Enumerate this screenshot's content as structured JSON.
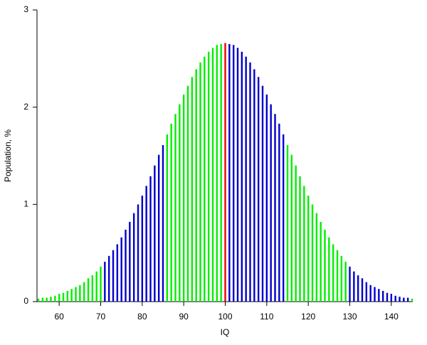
{
  "chart_data": {
    "type": "stem",
    "x_label": "IQ",
    "y_label": "Population, %",
    "x": [
      55,
      56,
      57,
      58,
      59,
      60,
      61,
      62,
      63,
      64,
      65,
      66,
      67,
      68,
      69,
      70,
      71,
      72,
      73,
      74,
      75,
      76,
      77,
      78,
      79,
      80,
      81,
      82,
      83,
      84,
      85,
      86,
      87,
      88,
      89,
      90,
      91,
      92,
      93,
      94,
      95,
      96,
      97,
      98,
      99,
      100,
      101,
      102,
      103,
      104,
      105,
      106,
      107,
      108,
      109,
      110,
      111,
      112,
      113,
      114,
      115,
      116,
      117,
      118,
      119,
      120,
      121,
      122,
      123,
      124,
      125,
      126,
      127,
      128,
      129,
      130,
      131,
      132,
      133,
      134,
      135,
      136,
      137,
      138,
      139,
      140,
      141,
      142,
      143,
      144,
      145
    ],
    "values": [
      0.03,
      0.04,
      0.04,
      0.05,
      0.06,
      0.08,
      0.09,
      0.11,
      0.13,
      0.15,
      0.17,
      0.2,
      0.24,
      0.27,
      0.31,
      0.36,
      0.41,
      0.47,
      0.53,
      0.59,
      0.66,
      0.74,
      0.82,
      0.91,
      1.0,
      1.09,
      1.19,
      1.29,
      1.4,
      1.51,
      1.61,
      1.72,
      1.83,
      1.93,
      2.03,
      2.13,
      2.22,
      2.31,
      2.39,
      2.46,
      2.52,
      2.57,
      2.61,
      2.64,
      2.65,
      2.66,
      2.65,
      2.64,
      2.61,
      2.57,
      2.52,
      2.46,
      2.39,
      2.31,
      2.22,
      2.13,
      2.03,
      1.93,
      1.83,
      1.72,
      1.61,
      1.51,
      1.4,
      1.29,
      1.19,
      1.09,
      1.0,
      0.91,
      0.82,
      0.74,
      0.66,
      0.59,
      0.53,
      0.47,
      0.41,
      0.36,
      0.31,
      0.27,
      0.24,
      0.2,
      0.17,
      0.15,
      0.13,
      0.11,
      0.09,
      0.08,
      0.06,
      0.05,
      0.04,
      0.04,
      0.03
    ],
    "colors": [
      "#00ee00",
      "#00ee00",
      "#00ee00",
      "#00ee00",
      "#00ee00",
      "#00ee00",
      "#00ee00",
      "#00ee00",
      "#00ee00",
      "#00ee00",
      "#00ee00",
      "#00ee00",
      "#00ee00",
      "#00ee00",
      "#00ee00",
      "#00ee00",
      "#0000cc",
      "#0000cc",
      "#0000cc",
      "#0000cc",
      "#0000cc",
      "#0000cc",
      "#0000cc",
      "#0000cc",
      "#0000cc",
      "#0000cc",
      "#0000cc",
      "#0000cc",
      "#0000cc",
      "#0000cc",
      "#0000cc",
      "#00ee00",
      "#00ee00",
      "#00ee00",
      "#00ee00",
      "#00ee00",
      "#00ee00",
      "#00ee00",
      "#00ee00",
      "#00ee00",
      "#00ee00",
      "#00ee00",
      "#00ee00",
      "#00ee00",
      "#00ee00",
      "#ee0000",
      "#0000cc",
      "#0000cc",
      "#0000cc",
      "#0000cc",
      "#0000cc",
      "#0000cc",
      "#0000cc",
      "#0000cc",
      "#0000cc",
      "#0000cc",
      "#0000cc",
      "#0000cc",
      "#0000cc",
      "#0000cc",
      "#00ee00",
      "#00ee00",
      "#00ee00",
      "#00ee00",
      "#00ee00",
      "#00ee00",
      "#00ee00",
      "#00ee00",
      "#00ee00",
      "#00ee00",
      "#00ee00",
      "#00ee00",
      "#00ee00",
      "#00ee00",
      "#00ee00",
      "#0000cc",
      "#0000cc",
      "#0000cc",
      "#0000cc",
      "#0000cc",
      "#0000cc",
      "#0000cc",
      "#0000cc",
      "#0000cc",
      "#0000cc",
      "#0000cc",
      "#0000cc",
      "#0000cc",
      "#0000cc",
      "#0000cc",
      "#00ee00"
    ],
    "xlim": [
      55,
      145
    ],
    "xticks": [
      60,
      70,
      80,
      90,
      100,
      110,
      120,
      130,
      140
    ],
    "ylim": [
      0,
      3
    ],
    "yticks": [
      0,
      1,
      2,
      3
    ]
  }
}
